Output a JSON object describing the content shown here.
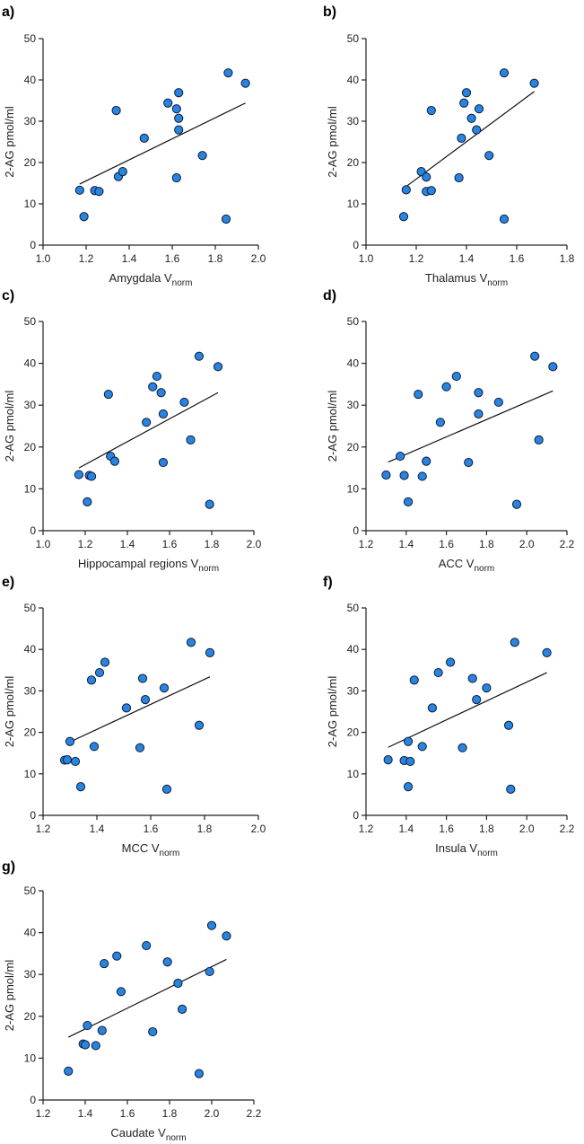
{
  "chart_data": [
    {
      "panel": "a)",
      "type": "scatter",
      "xlabel": "Amygdala V",
      "xlabel_sub": "norm",
      "ylabel": "2-AG pmol/ml",
      "xlim": [
        1.0,
        2.0
      ],
      "ylim": [
        0,
        50
      ],
      "xticks": [
        "1.0",
        "1.2",
        "1.4",
        "1.6",
        "1.8",
        "2.0"
      ],
      "yticks": [
        "0",
        "10",
        "20",
        "30",
        "40",
        "50"
      ],
      "x": [
        1.17,
        1.19,
        1.24,
        1.26,
        1.34,
        1.35,
        1.37,
        1.47,
        1.58,
        1.62,
        1.62,
        1.63,
        1.63,
        1.63,
        1.74,
        1.85,
        1.86,
        1.94
      ],
      "y": [
        13.3,
        6.9,
        13.2,
        13.0,
        32.6,
        16.6,
        17.8,
        25.9,
        34.4,
        33.0,
        16.3,
        36.9,
        30.7,
        27.9,
        21.7,
        6.3,
        41.7,
        39.2
      ],
      "fit": {
        "x": [
          1.17,
          1.94
        ],
        "y": [
          14.8,
          34.4
        ]
      }
    },
    {
      "panel": "b)",
      "type": "scatter",
      "xlabel": "Thalamus V",
      "xlabel_sub": "norm",
      "ylabel": "2-AG pmol/ml",
      "xlim": [
        1.0,
        1.8
      ],
      "ylim": [
        0,
        50
      ],
      "xticks": [
        "1.0",
        "1.2",
        "1.4",
        "1.6",
        "1.8"
      ],
      "yticks": [
        "0",
        "10",
        "20",
        "30",
        "40",
        "50"
      ],
      "x": [
        1.15,
        1.16,
        1.22,
        1.24,
        1.24,
        1.26,
        1.26,
        1.37,
        1.38,
        1.39,
        1.4,
        1.42,
        1.44,
        1.45,
        1.49,
        1.55,
        1.55,
        1.67
      ],
      "y": [
        6.9,
        13.4,
        17.8,
        16.5,
        13.0,
        13.2,
        32.6,
        16.3,
        25.9,
        34.4,
        36.9,
        30.7,
        27.9,
        33.0,
        21.7,
        6.3,
        41.7,
        39.2
      ],
      "fit": {
        "x": [
          1.16,
          1.67
        ],
        "y": [
          14.2,
          37.2
        ]
      }
    },
    {
      "panel": "c)",
      "type": "scatter",
      "xlabel": "Hippocampal regions V",
      "xlabel_sub": "norm",
      "ylabel": "2-AG pmol/ml",
      "xlim": [
        1.0,
        2.0
      ],
      "ylim": [
        0,
        50
      ],
      "xticks": [
        "1.0",
        "1.2",
        "1.4",
        "1.6",
        "1.8",
        "2.0"
      ],
      "yticks": [
        "0",
        "10",
        "20",
        "30",
        "40",
        "50"
      ],
      "x": [
        1.17,
        1.21,
        1.22,
        1.23,
        1.31,
        1.32,
        1.34,
        1.49,
        1.52,
        1.54,
        1.56,
        1.57,
        1.57,
        1.67,
        1.7,
        1.74,
        1.79,
        1.83
      ],
      "y": [
        13.4,
        6.9,
        13.2,
        13.0,
        32.6,
        17.8,
        16.6,
        25.9,
        34.4,
        36.9,
        33.0,
        27.9,
        16.3,
        30.7,
        21.7,
        41.7,
        6.3,
        39.2
      ],
      "fit": {
        "x": [
          1.17,
          1.83
        ],
        "y": [
          15.0,
          33.0
        ]
      }
    },
    {
      "panel": "d)",
      "type": "scatter",
      "xlabel": "ACC V",
      "xlabel_sub": "norm",
      "ylabel": "2-AG pmol/ml",
      "xlim": [
        1.2,
        2.2
      ],
      "ylim": [
        0,
        50
      ],
      "xticks": [
        "1.2",
        "1.4",
        "1.6",
        "1.8",
        "2.0",
        "2.2"
      ],
      "yticks": [
        "0",
        "10",
        "20",
        "30",
        "40",
        "50"
      ],
      "x": [
        1.3,
        1.37,
        1.39,
        1.41,
        1.46,
        1.48,
        1.5,
        1.57,
        1.6,
        1.65,
        1.71,
        1.76,
        1.76,
        1.86,
        1.95,
        2.04,
        2.06,
        2.13
      ],
      "y": [
        13.3,
        17.8,
        13.2,
        6.9,
        32.6,
        13.0,
        16.6,
        25.9,
        34.4,
        36.9,
        16.3,
        33.0,
        27.9,
        30.7,
        6.3,
        41.7,
        21.7,
        39.2
      ],
      "fit": {
        "x": [
          1.31,
          2.13
        ],
        "y": [
          16.4,
          33.4
        ]
      }
    },
    {
      "panel": "e)",
      "type": "scatter",
      "xlabel": "MCC V",
      "xlabel_sub": "norm",
      "ylabel": "2-AG pmol/ml",
      "xlim": [
        1.2,
        2.0
      ],
      "ylim": [
        0,
        50
      ],
      "xticks": [
        "1.2",
        "1.4",
        "1.6",
        "1.8",
        "2.0"
      ],
      "yticks": [
        "0",
        "10",
        "20",
        "30",
        "40",
        "50"
      ],
      "x": [
        1.28,
        1.29,
        1.3,
        1.32,
        1.34,
        1.38,
        1.39,
        1.41,
        1.43,
        1.51,
        1.56,
        1.57,
        1.58,
        1.65,
        1.66,
        1.75,
        1.78,
        1.82
      ],
      "y": [
        13.3,
        13.4,
        17.8,
        13.0,
        6.9,
        32.6,
        16.6,
        34.4,
        36.9,
        25.9,
        16.3,
        33.0,
        27.9,
        30.7,
        6.3,
        41.7,
        21.7,
        39.2
      ],
      "fit": {
        "x": [
          1.29,
          1.82
        ],
        "y": [
          17.4,
          33.4
        ]
      }
    },
    {
      "panel": "f)",
      "type": "scatter",
      "xlabel": "Insula V",
      "xlabel_sub": "norm",
      "ylabel": "2-AG pmol/ml",
      "xlim": [
        1.2,
        2.2
      ],
      "ylim": [
        0,
        50
      ],
      "xticks": [
        "1.2",
        "1.4",
        "1.6",
        "1.8",
        "2.0",
        "2.2"
      ],
      "yticks": [
        "0",
        "10",
        "20",
        "30",
        "40",
        "50"
      ],
      "x": [
        1.31,
        1.39,
        1.41,
        1.41,
        1.42,
        1.44,
        1.48,
        1.53,
        1.56,
        1.62,
        1.68,
        1.73,
        1.75,
        1.8,
        1.91,
        1.92,
        1.94,
        2.1
      ],
      "y": [
        13.4,
        13.2,
        17.8,
        6.9,
        13.0,
        32.6,
        16.6,
        25.9,
        34.4,
        36.9,
        16.3,
        33.0,
        27.9,
        30.7,
        21.7,
        6.3,
        41.7,
        39.2
      ],
      "fit": {
        "x": [
          1.31,
          2.1
        ],
        "y": [
          16.4,
          34.4
        ]
      }
    },
    {
      "panel": "g)",
      "type": "scatter",
      "xlabel": "Caudate V",
      "xlabel_sub": "norm",
      "ylabel": "2-AG pmol/ml",
      "xlim": [
        1.2,
        2.2
      ],
      "ylim": [
        0,
        50
      ],
      "xticks": [
        "1.2",
        "1.4",
        "1.6",
        "1.8",
        "2.0",
        "2.2"
      ],
      "yticks": [
        "0",
        "10",
        "20",
        "30",
        "40",
        "50"
      ],
      "x": [
        1.32,
        1.39,
        1.4,
        1.41,
        1.45,
        1.48,
        1.49,
        1.55,
        1.57,
        1.69,
        1.72,
        1.79,
        1.84,
        1.86,
        1.94,
        1.99,
        2.0,
        2.07
      ],
      "y": [
        6.9,
        13.4,
        13.2,
        17.8,
        13.0,
        16.6,
        32.6,
        34.4,
        25.9,
        36.9,
        16.3,
        33.0,
        27.9,
        21.7,
        6.3,
        30.7,
        41.7,
        39.2
      ],
      "fit": {
        "x": [
          1.32,
          2.07
        ],
        "y": [
          15.0,
          33.6
        ]
      }
    }
  ],
  "colors": {
    "marker_fill": "#2b83e0",
    "marker_stroke": "#0a1e38",
    "axis": "#222222",
    "fit_line": "#111111"
  }
}
